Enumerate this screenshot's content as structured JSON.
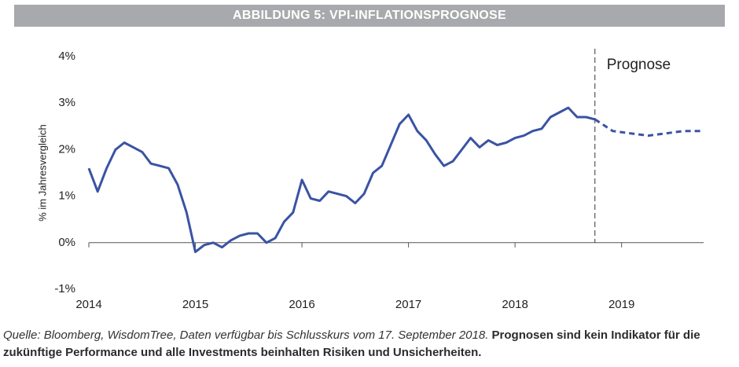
{
  "chart_data": {
    "type": "line",
    "title": "ABBILDUNG 5: VPI-INFLATIONSPROGNOSE",
    "y_label": "% im Jahresvergleich",
    "annotation": "Prognose",
    "forecast_start": 2018.75,
    "xlim": [
      2014,
      2019.77
    ],
    "xticks": [
      2014,
      2015,
      2016,
      2017,
      2018,
      2019
    ],
    "ylim": [
      -1,
      4
    ],
    "yticks": [
      {
        "value": -1,
        "label": "-1%"
      },
      {
        "value": 0,
        "label": "0%"
      },
      {
        "value": 1,
        "label": "1%"
      },
      {
        "value": 2,
        "label": "2%"
      },
      {
        "value": 3,
        "label": "3%"
      },
      {
        "value": 4,
        "label": "4%"
      }
    ],
    "series": [
      {
        "color": "#3a53a4",
        "style": "solid",
        "x": [
          2014,
          2014.083,
          2014.167,
          2014.25,
          2014.333,
          2014.417,
          2014.5,
          2014.583,
          2014.667,
          2014.75,
          2014.833,
          2014.917,
          2015,
          2015.083,
          2015.167,
          2015.25,
          2015.333,
          2015.417,
          2015.5,
          2015.583,
          2015.667,
          2015.75,
          2015.833,
          2015.917,
          2016,
          2016.083,
          2016.167,
          2016.25,
          2016.333,
          2016.417,
          2016.5,
          2016.583,
          2016.667,
          2016.75,
          2016.833,
          2016.917,
          2017,
          2017.083,
          2017.167,
          2017.25,
          2017.333,
          2017.417,
          2017.5,
          2017.583,
          2017.667,
          2017.75,
          2017.833,
          2017.917,
          2018,
          2018.083,
          2018.167,
          2018.25,
          2018.333,
          2018.417,
          2018.5,
          2018.583,
          2018.667,
          2018.75
        ],
        "values": [
          1.6,
          1.1,
          1.6,
          2.0,
          2.15,
          2.05,
          1.95,
          1.7,
          1.65,
          1.6,
          1.25,
          0.65,
          -0.2,
          -0.05,
          0.0,
          -0.1,
          0.05,
          0.15,
          0.2,
          0.2,
          0.0,
          0.1,
          0.45,
          0.65,
          1.35,
          0.95,
          0.9,
          1.1,
          1.05,
          1.0,
          0.85,
          1.05,
          1.5,
          1.65,
          2.1,
          2.55,
          2.75,
          2.4,
          2.2,
          1.9,
          1.65,
          1.75,
          2.0,
          2.25,
          2.05,
          2.2,
          2.1,
          2.15,
          2.25,
          2.3,
          2.4,
          2.45,
          2.7,
          2.8,
          2.9,
          2.7,
          2.7,
          2.65
        ]
      },
      {
        "color": "#3a53a4",
        "style": "dashed",
        "x": [
          2018.75,
          2018.917,
          2019.083,
          2019.25,
          2019.417,
          2019.583,
          2019.75
        ],
        "values": [
          2.65,
          2.4,
          2.35,
          2.3,
          2.35,
          2.4,
          2.4
        ]
      }
    ]
  },
  "footnote": {
    "source": "Quelle: Bloomberg, WisdomTree, Daten verfügbar bis Schlusskurs vom 17. September 2018.",
    "disclaimer": "Prognosen sind kein Indikator für die zukünftige Performance und alle Investments beinhalten Risiken und Unsicherheiten."
  }
}
